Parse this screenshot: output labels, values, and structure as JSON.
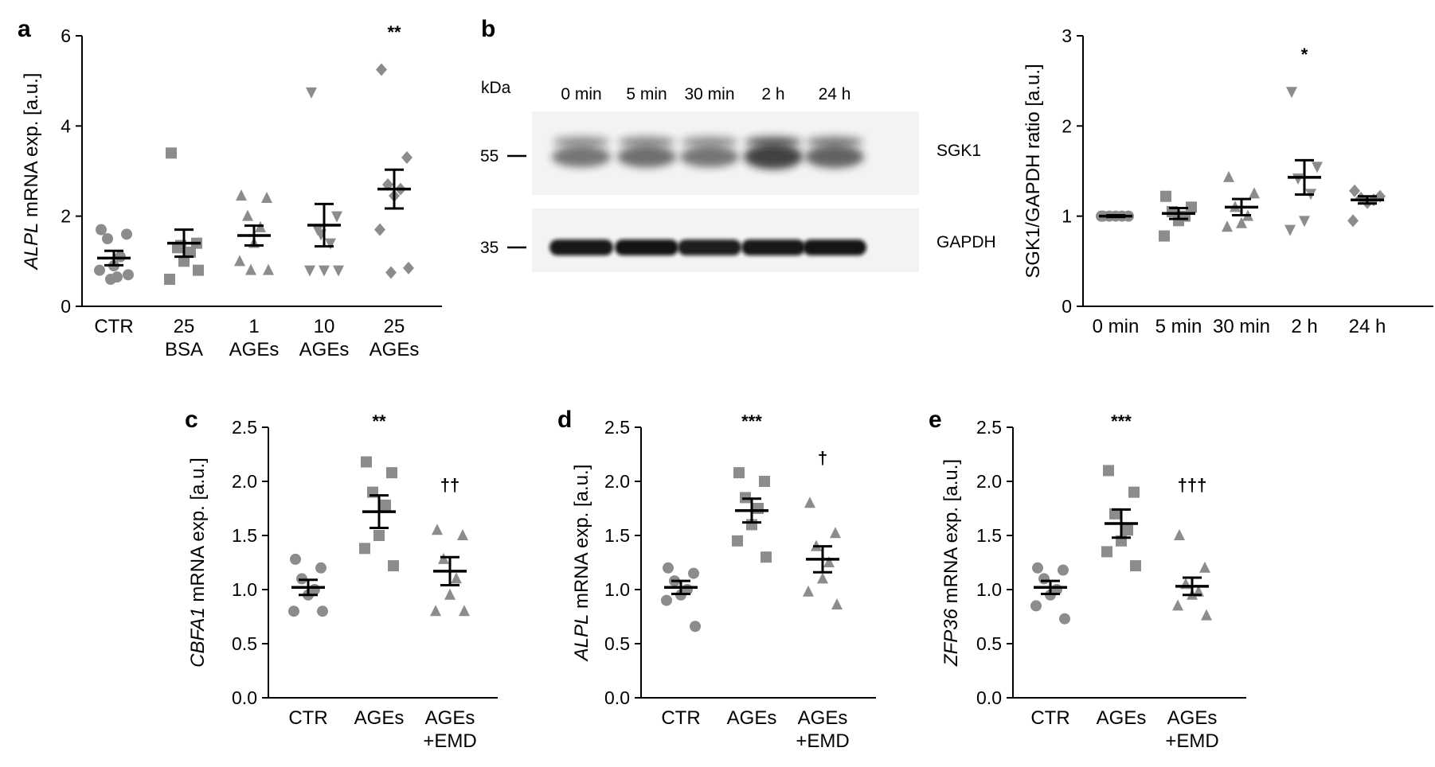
{
  "panels": {
    "a": {
      "letter": "a"
    },
    "b": {
      "letter": "b"
    },
    "c": {
      "letter": "c"
    },
    "d": {
      "letter": "d"
    },
    "e": {
      "letter": "e"
    }
  },
  "western_blot": {
    "kda_label": "kDa",
    "lanes": [
      "0 min",
      "5 min",
      "30 min",
      "2 h",
      "24 h"
    ],
    "markers": [
      "55",
      "35"
    ],
    "bands": [
      "SGK1",
      "GAPDH"
    ],
    "sgk1_intensity": [
      0.55,
      0.6,
      0.55,
      0.95,
      0.7
    ],
    "gapdh_intensity": [
      0.95,
      0.97,
      0.92,
      0.95,
      0.96
    ]
  },
  "chart_data": [
    {
      "id": "a",
      "type": "scatter",
      "ylabel_gene": "ALPL",
      "ylabel_rest": " mRNA exp. [a.u.]",
      "ylim": [
        0,
        6
      ],
      "yticks": [
        "0",
        "2",
        "4",
        "6"
      ],
      "categories": [
        [
          "CTR",
          ""
        ],
        [
          "25",
          "BSA"
        ],
        [
          "1",
          "AGEs"
        ],
        [
          "10",
          "AGEs"
        ],
        [
          "25",
          "AGEs"
        ]
      ],
      "marker": [
        "circle",
        "square",
        "triangle",
        "triangle-down",
        "diamond"
      ],
      "points": [
        [
          1.7,
          1.6,
          1.5,
          1.1,
          0.9,
          0.8,
          0.7,
          0.6,
          0.65
        ],
        [
          3.4,
          1.4,
          1.3,
          1.2,
          1.0,
          0.6,
          0.8,
          1.35
        ],
        [
          2.45,
          2.4,
          2.0,
          1.75,
          1.4,
          1.0,
          0.8,
          0.8
        ],
        [
          4.75,
          2.0,
          1.7,
          1.4,
          0.8,
          0.8,
          0.8,
          1.6
        ],
        [
          5.25,
          3.3,
          2.7,
          2.6,
          2.45,
          1.7,
          0.85,
          0.75
        ]
      ],
      "mean": [
        1.07,
        1.4,
        1.57,
        1.8,
        2.6
      ],
      "sem": [
        0.16,
        0.3,
        0.22,
        0.47,
        0.43
      ],
      "annotations": [
        "",
        "",
        "",
        "",
        "**"
      ]
    },
    {
      "id": "b",
      "type": "scatter",
      "ylabel_gene": "",
      "ylabel_rest": "SGK1/GAPDH ratio [a.u.]",
      "ylim": [
        0,
        3
      ],
      "yticks": [
        "0",
        "1",
        "2",
        "3"
      ],
      "categories": [
        [
          "0 min",
          ""
        ],
        [
          "5 min",
          ""
        ],
        [
          "30 min",
          ""
        ],
        [
          "2 h",
          ""
        ],
        [
          "24 h",
          ""
        ]
      ],
      "marker": [
        "circle",
        "square",
        "triangle",
        "triangle-down",
        "diamond"
      ],
      "points": [
        [
          1.0,
          1.0,
          1.0,
          1.0,
          1.0,
          1.0
        ],
        [
          1.22,
          1.1,
          1.05,
          1.0,
          0.95,
          0.78
        ],
        [
          1.43,
          1.25,
          1.1,
          1.0,
          0.92,
          0.88
        ],
        [
          2.38,
          1.55,
          1.42,
          1.25,
          0.95,
          0.85
        ],
        [
          1.28,
          1.22,
          1.2,
          1.18,
          1.15,
          0.95
        ]
      ],
      "mean": [
        1.0,
        1.03,
        1.1,
        1.43,
        1.18
      ],
      "sem": [
        0.01,
        0.06,
        0.09,
        0.19,
        0.04
      ],
      "annotations": [
        "",
        "",
        "",
        "*",
        ""
      ]
    },
    {
      "id": "c",
      "type": "scatter",
      "ylabel_gene": "CBFA1",
      "ylabel_rest": " mRNA exp. [a.u.]",
      "ylim": [
        0,
        2.5
      ],
      "yticks": [
        "0.0",
        "0.5",
        "1.0",
        "1.5",
        "2.0",
        "2.5"
      ],
      "categories": [
        [
          "CTR",
          ""
        ],
        [
          "AGEs",
          ""
        ],
        [
          "AGEs",
          "+EMD"
        ]
      ],
      "marker": [
        "circle",
        "square",
        "triangle"
      ],
      "points": [
        [
          1.28,
          1.2,
          1.1,
          1.0,
          0.95,
          0.8,
          0.8
        ],
        [
          2.18,
          2.08,
          1.9,
          1.78,
          1.5,
          1.38,
          1.22
        ],
        [
          1.55,
          1.5,
          1.28,
          1.1,
          0.95,
          0.8,
          0.8
        ]
      ],
      "mean": [
        1.02,
        1.72,
        1.17
      ],
      "sem": [
        0.07,
        0.15,
        0.13
      ],
      "annotations": [
        "",
        "**",
        "††"
      ]
    },
    {
      "id": "d",
      "type": "scatter",
      "ylabel_gene": "ALPL",
      "ylabel_rest": " mRNA exp. [a.u.]",
      "ylim": [
        0,
        2.5
      ],
      "yticks": [
        "0.0",
        "0.5",
        "1.0",
        "1.5",
        "2.0",
        "2.5"
      ],
      "categories": [
        [
          "CTR",
          ""
        ],
        [
          "AGEs",
          ""
        ],
        [
          "AGEs",
          "+EMD"
        ]
      ],
      "marker": [
        "circle",
        "square",
        "triangle"
      ],
      "points": [
        [
          1.2,
          1.15,
          1.08,
          1.0,
          0.95,
          0.9,
          0.66
        ],
        [
          2.08,
          2.0,
          1.85,
          1.75,
          1.6,
          1.45,
          1.3
        ],
        [
          1.8,
          1.52,
          1.4,
          1.25,
          1.1,
          0.98,
          0.86
        ]
      ],
      "mean": [
        1.02,
        1.73,
        1.28
      ],
      "sem": [
        0.06,
        0.11,
        0.12
      ],
      "annotations": [
        "",
        "***",
        "†"
      ]
    },
    {
      "id": "e",
      "type": "scatter",
      "ylabel_gene": "ZFP36",
      "ylabel_rest": " mRNA exp. [a.u.]",
      "ylim": [
        0,
        2.5
      ],
      "yticks": [
        "0.0",
        "0.5",
        "1.0",
        "1.5",
        "2.0",
        "2.5"
      ],
      "categories": [
        [
          "CTR",
          ""
        ],
        [
          "AGEs",
          ""
        ],
        [
          "AGEs",
          "+EMD"
        ]
      ],
      "marker": [
        "circle",
        "square",
        "triangle"
      ],
      "points": [
        [
          1.2,
          1.18,
          1.1,
          1.0,
          0.95,
          0.85,
          0.73
        ],
        [
          2.1,
          1.9,
          1.7,
          1.55,
          1.45,
          1.35,
          1.22
        ],
        [
          1.5,
          1.2,
          1.05,
          0.98,
          0.95,
          0.85,
          0.76
        ]
      ],
      "mean": [
        1.02,
        1.61,
        1.03
      ],
      "sem": [
        0.06,
        0.13,
        0.08
      ],
      "annotations": [
        "",
        "***",
        "†††"
      ]
    }
  ],
  "colors": {
    "marker": "#8c8c8c",
    "line": "#000000",
    "blot_bg": "#f3f3f3",
    "band": "#1e1e1e"
  }
}
